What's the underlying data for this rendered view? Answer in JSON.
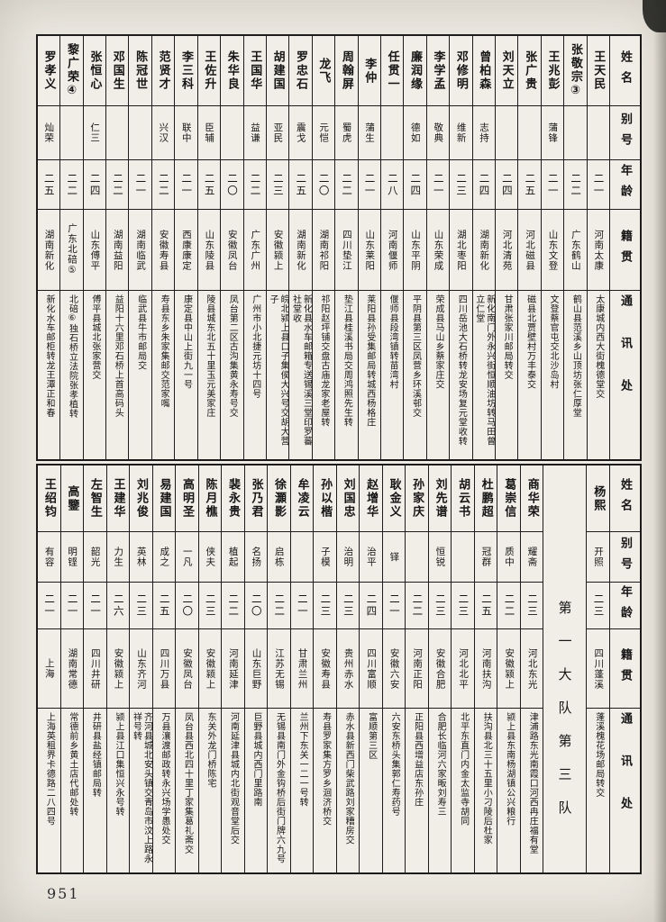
{
  "colors": {
    "paper": "#f1eee7",
    "page_bg": "#edeae2",
    "ink": "#1c1c1c"
  },
  "page": {
    "number": "951"
  },
  "headers": {
    "name": "姓名",
    "alias": "别号",
    "age": "年龄",
    "origin": "籍贯",
    "address": "通讯处"
  },
  "divider": {
    "label": "第一大队第三队"
  },
  "top": {
    "persons": [
      {
        "name": "王天民",
        "alias": "",
        "age": "二一",
        "origin": "河南太康",
        "address": "太康城内西大街槐德堂交"
      },
      {
        "name": "张敬宗③",
        "alias": "",
        "age": "二二",
        "origin": "广东鹤山",
        "address": "鹤山县范溪乡山顶坊张仁厚堂"
      },
      {
        "name": "王兆彭",
        "alias": "蒲锋",
        "age": "二一",
        "origin": "山东文登",
        "address": "文登蔡官屯交北沙岛村"
      },
      {
        "name": "张广贵",
        "alias": "",
        "age": "二五",
        "origin": "河北磁县",
        "address": "磁县北贾壁村万丰泰交"
      },
      {
        "name": "刘天立",
        "alias": "",
        "age": "二四",
        "origin": "河北清苑",
        "address": "甘肃张家川邮局转交"
      },
      {
        "name": "曾柏森",
        "alias": "志持",
        "age": "二四",
        "origin": "湖南新化",
        "address": "新化南门外永兴街恒顺油坊转马田曾立仁堂"
      },
      {
        "name": "邓修明",
        "alias": "维新",
        "age": "二三",
        "origin": "湖北枣阳",
        "address": "四川岳池大石桥转龙安场复元堂收转"
      },
      {
        "name": "李学孟",
        "alias": "敬典",
        "age": "二一",
        "origin": "山东荣成",
        "address": "荣成县马山乡蔡家庄交"
      },
      {
        "name": "廉润缘",
        "alias": "德如",
        "age": "二四",
        "origin": "山东平阴",
        "address": "平阴县第三区凤营乡环溪邨交"
      },
      {
        "name": "任贯一",
        "alias": "",
        "age": "二八",
        "origin": "河南偃师",
        "address": "偃师县段湾镇转苗湾村"
      },
      {
        "name": "李仲",
        "alias": "蒲生",
        "age": "二一",
        "origin": "山东莱阳",
        "address": "莱阳县孙受集邮局转城西杨格庄"
      },
      {
        "name": "周翰屏",
        "alias": "蜀虎",
        "age": "二二",
        "origin": "四川垫江",
        "address": "垫江县桂溪书局交周鸿照先生转"
      },
      {
        "name": "龙飞",
        "alias": "元恺",
        "age": "二〇",
        "origin": "湖南祁阳",
        "address": "祁阳赵坪铺交盘古庙龙家老屋转"
      },
      {
        "name": "罗忠石",
        "alias": "震戈",
        "age": "二五",
        "origin": "湖南新化",
        "address": "新化县水车邮箱专送锡溪三堂印罗蕃社堂收"
      },
      {
        "name": "胡建国",
        "alias": "亚民",
        "age": "二三",
        "origin": "安徽颍上",
        "address": "皖北颍上县口子集侯大兴号交胡大营子"
      },
      {
        "name": "王国华",
        "alias": "益谦",
        "age": "二二",
        "origin": "广东广州",
        "address": "广州市小北捷元坊十四号"
      },
      {
        "name": "朱华良",
        "alias": "",
        "age": "二〇",
        "origin": "安徽凤台",
        "address": "凤台第二区古沟集黄永寿号交"
      },
      {
        "name": "王佐升",
        "alias": "臣辅",
        "age": "二五",
        "origin": "山东陵县",
        "address": "陵县城东北五十里玉元美家庄"
      },
      {
        "name": "李三科",
        "alias": "联中",
        "age": "二一",
        "origin": "西康康定",
        "address": "康定县中山上街九一号"
      },
      {
        "name": "范贤才",
        "alias": "兴汉",
        "age": "二二",
        "origin": "安徽寿县",
        "address": "寿县东乡朱家集邮交范家嘴"
      },
      {
        "name": "陈冠世",
        "alias": "",
        "age": "二一",
        "origin": "湖南临武",
        "address": "临武县牛市邮局交"
      },
      {
        "name": "邓国生",
        "alias": "",
        "age": "二二",
        "origin": "湖南益阳",
        "address": "益阳十六里邓石桥上首高码头"
      },
      {
        "name": "张恒心",
        "alias": "仁三",
        "age": "二四",
        "origin": "山东傅平",
        "address": "傅平县城北张家营交"
      },
      {
        "name": "黎广荣④",
        "alias": "",
        "age": "二二",
        "origin": "广东北碚⑤",
        "address": "北碚⑥独石桥立法院张孝植转"
      },
      {
        "name": "罗孝义",
        "alias": "灿荣",
        "age": "二五",
        "origin": "湖南新化",
        "address": "新化水车邮柜转龙王潭正和春"
      }
    ]
  },
  "bottom": {
    "group_a": [
      {
        "name": "杨熙",
        "alias": "开照",
        "age": "二三",
        "origin": "四川蓬溪",
        "address": "蓬溪槐花场邮局转交"
      }
    ],
    "group_b": [
      {
        "name": "商华荣",
        "alias": "耀斋",
        "age": "二三",
        "origin": "河北东光",
        "address": "津浦路东光南霞口河西冉庄福有堂"
      },
      {
        "name": "葛崇信",
        "alias": "质中",
        "age": "二二",
        "origin": "安徽颍上",
        "address": "颍上县东南杨湖镇公兴粮行"
      },
      {
        "name": "杜鹏超",
        "alias": "冠群",
        "age": "二五",
        "origin": "河南扶沟",
        "address": "扶沟县北三十五里小刁陵后杜家"
      },
      {
        "name": "胡云书",
        "alias": "",
        "age": "二三",
        "origin": "河北北平",
        "address": "北平东直门内金太监寺胡同"
      },
      {
        "name": "刘先谱",
        "alias": "恒锐",
        "age": "二三",
        "origin": "安徽合肥",
        "address": "合肥长临河六家畈刘寿三"
      },
      {
        "name": "孙家庆",
        "alias": "",
        "age": "二二",
        "origin": "河南正阳",
        "address": "正阳县西增益店东孙庄"
      },
      {
        "name": "耿金义",
        "alias": "铎",
        "age": "二一",
        "origin": "安徽六安",
        "address": "六安东桥头集郭仁寿药号"
      },
      {
        "name": "赵增华",
        "alias": "治平",
        "age": "二四",
        "origin": "四川富顺",
        "address": "富顺第三区"
      },
      {
        "name": "刘国忠",
        "alias": "治明",
        "age": "二三",
        "origin": "贵州赤水",
        "address": "赤水县新西门柴武路刘家糟房交"
      },
      {
        "name": "孙以楷",
        "alias": "子模",
        "age": "二三",
        "origin": "安徽寿县",
        "address": "寿县罗家集方罗乡洄济桥交"
      },
      {
        "name": "牟凌云",
        "alias": "",
        "age": "二一",
        "origin": "甘肃兰州",
        "address": "兰州下东关一二一号转"
      },
      {
        "name": "徐灝影",
        "alias": "启栋",
        "age": "二二",
        "origin": "江苏无锡",
        "address": "无锡县南门外金钩桥后街门牌六九号"
      },
      {
        "name": "张乃君",
        "alias": "名扬",
        "age": "二〇",
        "origin": "山东巨野",
        "address": "巨野县城内西门里路南"
      },
      {
        "name": "裴永贵",
        "alias": "植起",
        "age": "二二",
        "origin": "河南延津",
        "address": "河南延津县城内北街观音堂后交"
      },
      {
        "name": "陈月樵",
        "alias": "侠夫",
        "age": "二三",
        "origin": "安徽颍上",
        "address": "东关外龙门桥陈宅"
      },
      {
        "name": "高明圣",
        "alias": "一凡",
        "age": "二〇",
        "origin": "安徽凤台",
        "address": "凤台县西北四十里丁家集葛礼斋交"
      },
      {
        "name": "易建国",
        "alias": "成之",
        "age": "二五",
        "origin": "四川万县",
        "address": "万县瀼渡邮政转永兴场学愚处交"
      },
      {
        "name": "刘兆俊",
        "alias": "英林",
        "age": "二三",
        "origin": "山东齐河",
        "address": "齐河县城北安头镇交青岛市汶上路永祥号转"
      },
      {
        "name": "王建华",
        "alias": "力生",
        "age": "二六",
        "origin": "安徽颍上",
        "address": "颍上县江口集恒兴永号转"
      },
      {
        "name": "左智生",
        "alias": "韶光",
        "age": "二一",
        "origin": "四川井研",
        "address": "井研县盐经镇邮局转"
      },
      {
        "name": "高鑒",
        "alias": "明铿",
        "age": "二一",
        "origin": "湖南常德",
        "address": "常德前乡黄土店代邮处转"
      },
      {
        "name": "王绍钧",
        "alias": "有容",
        "age": "二一",
        "origin": "上海",
        "address": "上海英租界卡德路二八四号"
      }
    ]
  }
}
